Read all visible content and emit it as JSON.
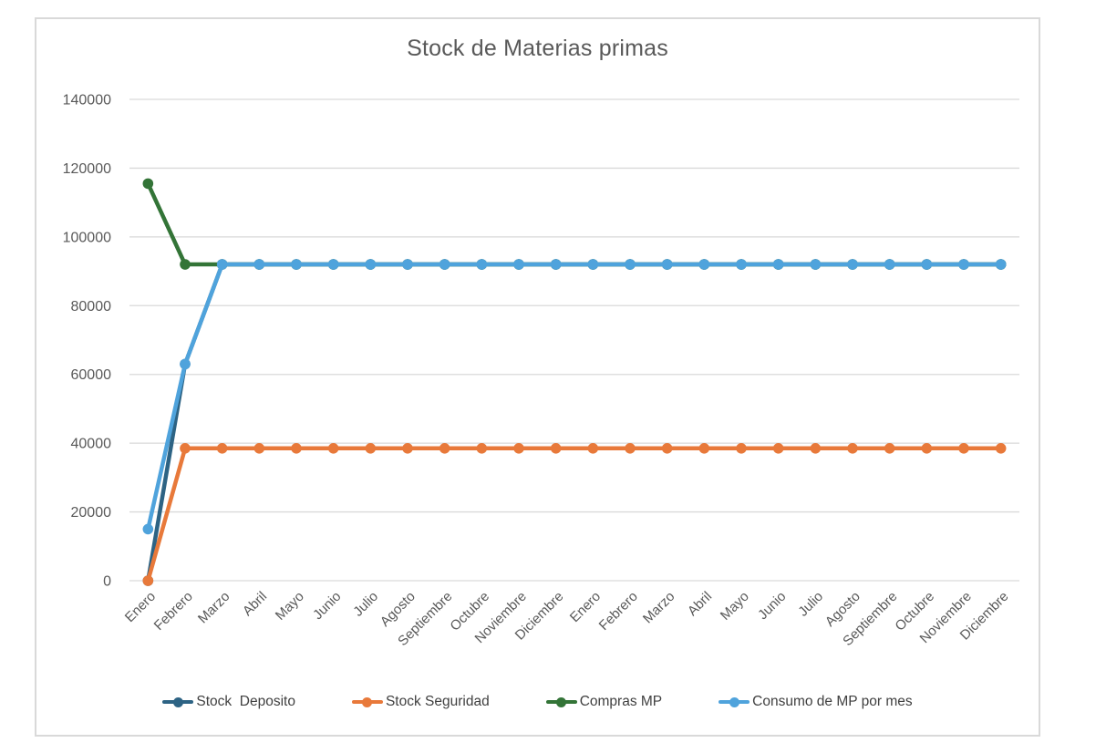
{
  "chart_data": {
    "type": "line",
    "title": "Stock de Materias primas",
    "xlabel": "",
    "ylabel": "",
    "ylim": [
      0,
      140000
    ],
    "y_ticks": [
      0,
      20000,
      40000,
      60000,
      80000,
      100000,
      120000,
      140000
    ],
    "grid": true,
    "legend_position": "bottom",
    "grid_color": "#D9D9D9",
    "frame_border_color": "#D9D9D9",
    "title_color": "#595959",
    "axis_label_color": "#595959",
    "legend_text_color": "#404040",
    "categories": [
      "Enero",
      "Febrero",
      "Marzo",
      "Abril",
      "Mayo",
      "Junio",
      "Julio",
      "Agosto",
      "Septiembre",
      "Octubre",
      "Noviembre",
      "Diciembre",
      "Enero",
      "Febrero",
      "Marzo",
      "Abril",
      "Mayo",
      "Junio",
      "Julio",
      "Agosto",
      "Septiembre",
      "Octubre",
      "Noviembre",
      "Diciembre"
    ],
    "series": [
      {
        "name": "Stock  Deposito",
        "color": "#2D6384",
        "values": [
          0,
          63000,
          92000,
          92000,
          92000,
          92000,
          92000,
          92000,
          92000,
          92000,
          92000,
          92000,
          92000,
          92000,
          92000,
          92000,
          92000,
          92000,
          92000,
          92000,
          92000,
          92000,
          92000,
          92000
        ]
      },
      {
        "name": "Stock Seguridad",
        "color": "#E8793A",
        "values": [
          0,
          38500,
          38500,
          38500,
          38500,
          38500,
          38500,
          38500,
          38500,
          38500,
          38500,
          38500,
          38500,
          38500,
          38500,
          38500,
          38500,
          38500,
          38500,
          38500,
          38500,
          38500,
          38500,
          38500
        ]
      },
      {
        "name": "Compras MP",
        "color": "#337437",
        "values": [
          115500,
          92000,
          92000,
          92000,
          92000,
          92000,
          92000,
          92000,
          92000,
          92000,
          92000,
          92000,
          92000,
          92000,
          92000,
          92000,
          92000,
          92000,
          92000,
          92000,
          92000,
          92000,
          92000,
          92000
        ]
      },
      {
        "name": "Consumo de MP por mes",
        "color": "#4FA3DC",
        "values": [
          15000,
          63000,
          92000,
          92000,
          92000,
          92000,
          92000,
          92000,
          92000,
          92000,
          92000,
          92000,
          92000,
          92000,
          92000,
          92000,
          92000,
          92000,
          92000,
          92000,
          92000,
          92000,
          92000,
          92000
        ]
      }
    ]
  }
}
